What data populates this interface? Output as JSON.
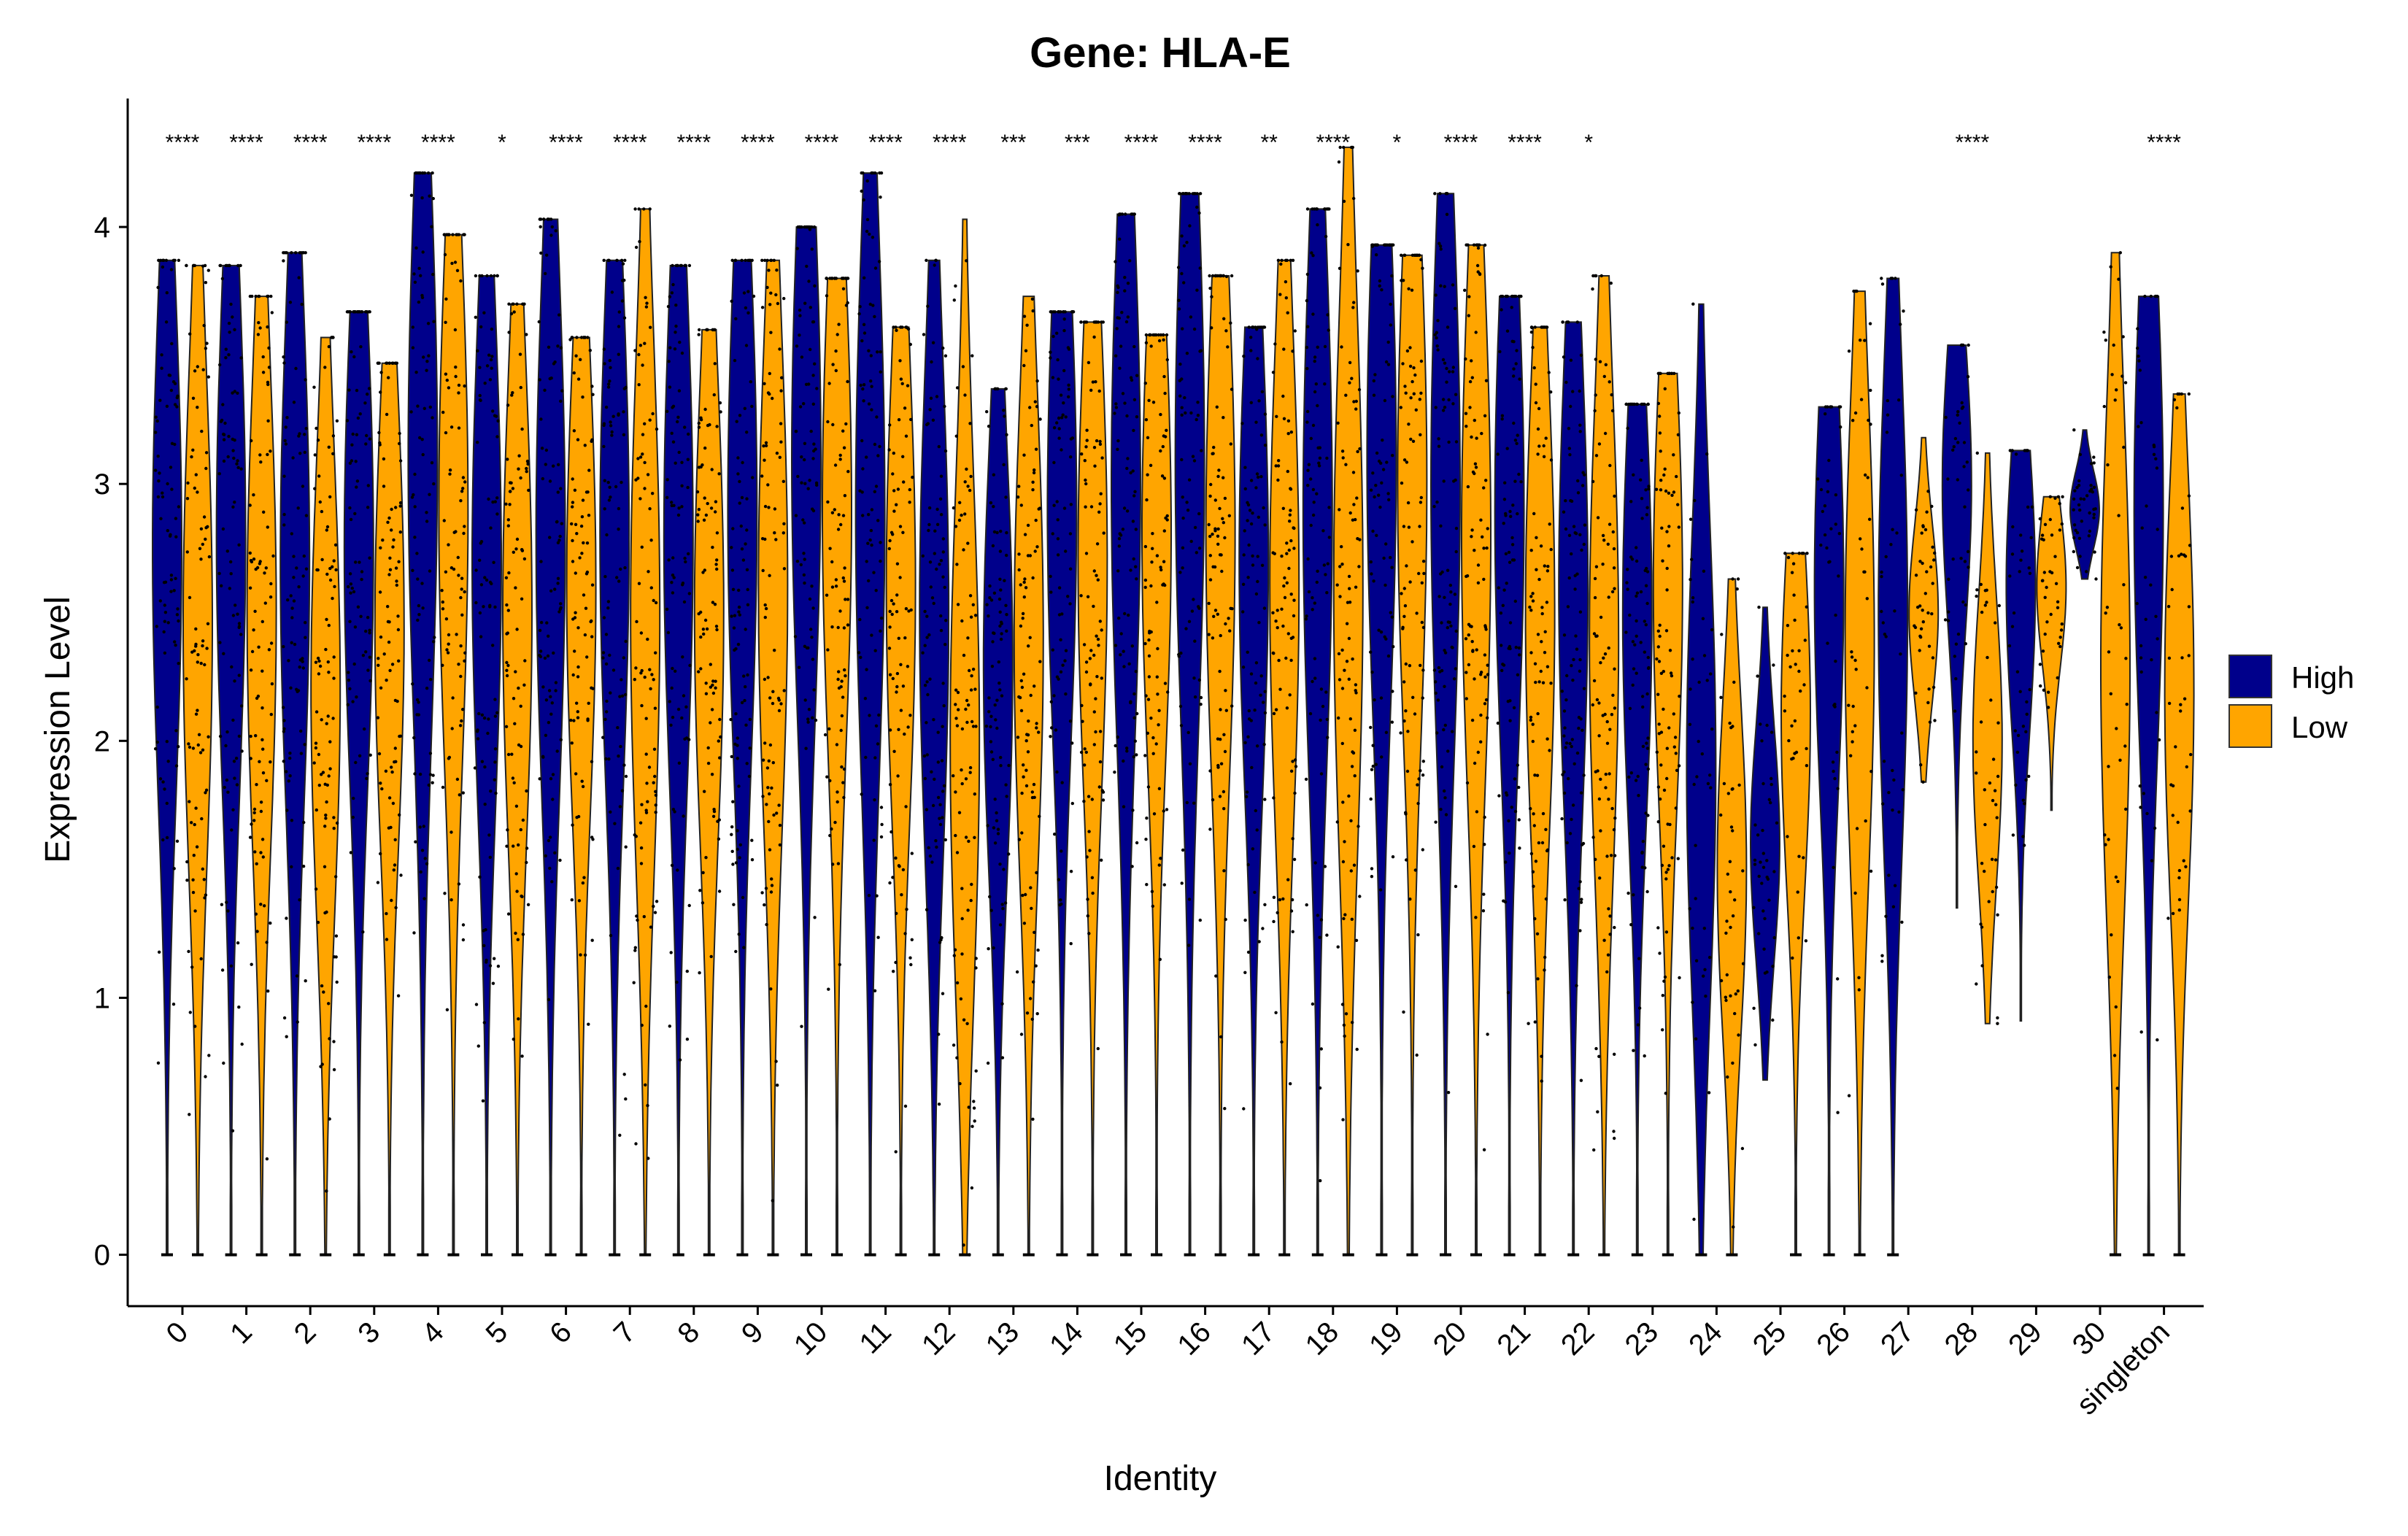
{
  "chart_data": {
    "type": "violin",
    "title": "Gene: HLA-E",
    "xlabel": "Identity",
    "ylabel": "Expression Level",
    "ylim": [
      -0.2,
      4.5
    ],
    "yticks": [
      0,
      1,
      2,
      3,
      4
    ],
    "grid": false,
    "legend": {
      "placement": "right",
      "entries": [
        {
          "name": "High",
          "color": "#00008B"
        },
        {
          "name": "Low",
          "color": "#FFA500"
        }
      ]
    },
    "categories": [
      "0",
      "1",
      "2",
      "3",
      "4",
      "5",
      "6",
      "7",
      "8",
      "9",
      "10",
      "11",
      "12",
      "13",
      "14",
      "15",
      "16",
      "17",
      "18",
      "19",
      "20",
      "21",
      "22",
      "23",
      "24",
      "25",
      "26",
      "27",
      "28",
      "29",
      "30",
      "singleton"
    ],
    "significance": [
      "****",
      "****",
      "****",
      "****",
      "****",
      "*",
      "****",
      "****",
      "****",
      "****",
      "****",
      "****",
      "****",
      "***",
      "***",
      "****",
      "****",
      "**",
      "****",
      "*",
      "****",
      "****",
      "*",
      "",
      "",
      "",
      "",
      "",
      "****",
      "",
      "",
      "****"
    ],
    "series": [
      {
        "name": "High",
        "color": "#00008B",
        "violins": [
          {
            "min": 0,
            "max": 3.87,
            "mode": 2.75
          },
          {
            "min": 0,
            "max": 3.85,
            "mode": 2.8
          },
          {
            "min": 0,
            "max": 3.9,
            "mode": 2.7
          },
          {
            "min": 0,
            "max": 3.67,
            "mode": 2.75
          },
          {
            "min": 0,
            "max": 4.21,
            "mode": 3.1
          },
          {
            "min": 0,
            "max": 3.81,
            "mode": 2.7
          },
          {
            "min": 0,
            "max": 4.03,
            "mode": 2.8
          },
          {
            "min": 0,
            "max": 3.87,
            "mode": 2.8
          },
          {
            "min": 0,
            "max": 3.85,
            "mode": 2.8
          },
          {
            "min": 0,
            "max": 3.87,
            "mode": 2.9
          },
          {
            "min": 0,
            "max": 4.0,
            "mode": 3.1
          },
          {
            "min": 0,
            "max": 4.21,
            "mode": 2.9
          },
          {
            "min": 0,
            "max": 3.87,
            "mode": 2.5
          },
          {
            "min": 0,
            "max": 3.37,
            "mode": 2.3
          },
          {
            "min": 0,
            "max": 3.67,
            "mode": 2.9
          },
          {
            "min": 0,
            "max": 4.05,
            "mode": 3.0
          },
          {
            "min": 0,
            "max": 4.13,
            "mode": 3.1
          },
          {
            "min": 0,
            "max": 3.61,
            "mode": 2.7
          },
          {
            "min": 0,
            "max": 4.07,
            "mode": 2.9
          },
          {
            "min": 0,
            "max": 3.93,
            "mode": 3.1
          },
          {
            "min": 0,
            "max": 4.13,
            "mode": 3.0
          },
          {
            "min": 0,
            "max": 3.73,
            "mode": 2.9
          },
          {
            "min": 0,
            "max": 3.63,
            "mode": 2.6
          },
          {
            "min": 0,
            "max": 3.31,
            "mode": 2.5
          },
          {
            "min": 0,
            "max": 3.7,
            "mode": 1.9
          },
          {
            "min": 0.68,
            "max": 2.52,
            "mode": 1.6
          },
          {
            "min": 0,
            "max": 3.3,
            "mode": 2.6
          },
          {
            "min": 0,
            "max": 3.8,
            "mode": 2.5
          },
          {
            "min": 1.35,
            "max": 3.54,
            "mode": 3.0
          },
          {
            "min": 0.91,
            "max": 3.13,
            "mode": 2.6
          },
          {
            "min": 2.63,
            "max": 3.21,
            "mode": 2.9
          },
          {
            "min": 0,
            "max": 3.73,
            "mode": 2.9
          }
        ]
      },
      {
        "name": "Low",
        "color": "#FFA500",
        "violins": [
          {
            "min": 0,
            "max": 3.85,
            "mode": 2.45
          },
          {
            "min": 0,
            "max": 3.73,
            "mode": 2.5
          },
          {
            "min": 0,
            "max": 3.57,
            "mode": 2.2
          },
          {
            "min": 0,
            "max": 3.47,
            "mode": 2.45
          },
          {
            "min": 0,
            "max": 3.97,
            "mode": 2.9
          },
          {
            "min": 0,
            "max": 3.7,
            "mode": 2.5
          },
          {
            "min": 0,
            "max": 3.57,
            "mode": 2.6
          },
          {
            "min": 0,
            "max": 4.07,
            "mode": 2.5
          },
          {
            "min": 0,
            "max": 3.6,
            "mode": 2.5
          },
          {
            "min": 0,
            "max": 3.87,
            "mode": 2.6
          },
          {
            "min": 0,
            "max": 3.8,
            "mode": 2.9
          },
          {
            "min": 0,
            "max": 3.61,
            "mode": 2.6
          },
          {
            "min": 0,
            "max": 4.03,
            "mode": 2.0
          },
          {
            "min": 0,
            "max": 3.73,
            "mode": 2.4
          },
          {
            "min": 0,
            "max": 3.63,
            "mode": 2.7
          },
          {
            "min": 0,
            "max": 3.58,
            "mode": 2.8
          },
          {
            "min": 0,
            "max": 3.81,
            "mode": 2.8
          },
          {
            "min": 0,
            "max": 3.87,
            "mode": 2.6
          },
          {
            "min": 0,
            "max": 4.31,
            "mode": 2.6
          },
          {
            "min": 0,
            "max": 3.89,
            "mode": 3.0
          },
          {
            "min": 0,
            "max": 3.93,
            "mode": 2.8
          },
          {
            "min": 0,
            "max": 3.61,
            "mode": 2.5
          },
          {
            "min": 0,
            "max": 3.81,
            "mode": 2.4
          },
          {
            "min": 0,
            "max": 3.43,
            "mode": 2.6
          },
          {
            "min": 0,
            "max": 2.63,
            "mode": 1.5
          },
          {
            "min": 0,
            "max": 2.73,
            "mode": 2.1
          },
          {
            "min": 0,
            "max": 3.75,
            "mode": 2.4
          },
          {
            "min": 1.84,
            "max": 3.18,
            "mode": 2.5
          },
          {
            "min": 0.9,
            "max": 3.12,
            "mode": 2.0
          },
          {
            "min": 1.73,
            "max": 2.95,
            "mode": 2.6
          },
          {
            "min": 0,
            "max": 3.9,
            "mode": 2.3
          },
          {
            "min": 0,
            "max": 3.35,
            "mode": 2.2
          }
        ]
      }
    ]
  }
}
